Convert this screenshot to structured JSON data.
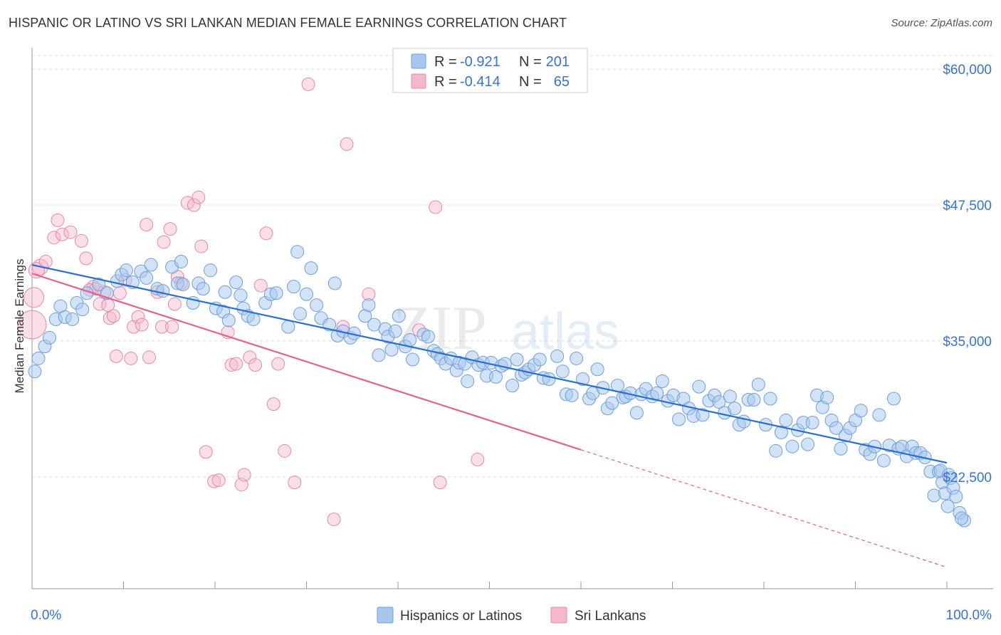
{
  "title": "HISPANIC OR LATINO VS SRI LANKAN MEDIAN FEMALE EARNINGS CORRELATION CHART",
  "source": "Source: ZipAtlas.com",
  "watermark": {
    "zip": "ZIP",
    "atlas": "atlas"
  },
  "legend_top": [
    {
      "r_label": "R =",
      "r_value": "-0.921",
      "n_label": "N =",
      "n_value": "201"
    },
    {
      "r_label": "R =",
      "r_value": "-0.414",
      "n_label": "N =",
      "n_value": "65"
    }
  ],
  "legend_bottom": [
    "Hispanics or Latinos",
    "Sri Lankans"
  ],
  "colors": {
    "blue_fill": "#a7c7ef",
    "blue_stroke": "#6e9fd8",
    "blue_line": "#2a6fcf",
    "pink_fill": "#f4b8cc",
    "pink_stroke": "#e48aa8",
    "pink_line": "#e0648c",
    "value_text": "#3b73c6",
    "grid": "#dddddd"
  },
  "chart_data": {
    "type": "scatter",
    "xlabel": "",
    "ylabel": "Median Female Earnings",
    "x_tick_labels": [
      "0.0%",
      "100.0%"
    ],
    "y_tick_labels": [
      "$22,500",
      "$35,000",
      "$47,500",
      "$60,000"
    ],
    "xlim": [
      0,
      100
    ],
    "ylim": [
      12000,
      62000
    ],
    "grid": true,
    "legend_placement": "top-center and bottom",
    "series": [
      {
        "name": "Hispanics or Latinos",
        "color": "#a7c7ef",
        "trend": {
          "x": [
            0,
            100
          ],
          "y": [
            42000,
            23800
          ]
        },
        "points": [
          [
            0.3,
            32200
          ],
          [
            0.7,
            33400
          ],
          [
            1.4,
            34500
          ],
          [
            1.9,
            35300
          ],
          [
            2.6,
            37000
          ],
          [
            3.1,
            38200
          ],
          [
            3.6,
            37200
          ],
          [
            4.4,
            37000
          ],
          [
            4.9,
            38500
          ],
          [
            5.5,
            37900
          ],
          [
            6.0,
            39400
          ],
          [
            7.3,
            40200
          ],
          [
            8.2,
            39400
          ],
          [
            9.3,
            40500
          ],
          [
            9.8,
            41100
          ],
          [
            10.3,
            41500
          ],
          [
            11.0,
            40400
          ],
          [
            11.9,
            41400
          ],
          [
            12.5,
            40800
          ],
          [
            13.0,
            42000
          ],
          [
            13.7,
            39800
          ],
          [
            14.3,
            39600
          ],
          [
            15.3,
            41800
          ],
          [
            15.9,
            40300
          ],
          [
            16.3,
            42300
          ],
          [
            16.5,
            40200
          ],
          [
            17.6,
            38500
          ],
          [
            18.2,
            40300
          ],
          [
            18.7,
            39800
          ],
          [
            19.5,
            41500
          ],
          [
            20.1,
            38000
          ],
          [
            20.9,
            37700
          ],
          [
            21.1,
            39500
          ],
          [
            21.5,
            36900
          ],
          [
            22.3,
            40400
          ],
          [
            22.8,
            39200
          ],
          [
            23.1,
            38000
          ],
          [
            23.6,
            37300
          ],
          [
            24.2,
            37000
          ],
          [
            25.5,
            38500
          ],
          [
            26.1,
            39300
          ],
          [
            26.7,
            39400
          ],
          [
            28.0,
            36300
          ],
          [
            28.6,
            40000
          ],
          [
            29.0,
            43200
          ],
          [
            29.3,
            37500
          ],
          [
            30.0,
            39300
          ],
          [
            30.5,
            41700
          ],
          [
            31.1,
            38300
          ],
          [
            31.6,
            37100
          ],
          [
            32.5,
            36500
          ],
          [
            33.1,
            40300
          ],
          [
            33.4,
            35500
          ],
          [
            34.0,
            35900
          ],
          [
            34.8,
            35300
          ],
          [
            35.2,
            35700
          ],
          [
            36.4,
            37300
          ],
          [
            36.8,
            38300
          ],
          [
            37.4,
            36500
          ],
          [
            37.9,
            33700
          ],
          [
            38.6,
            36100
          ],
          [
            38.9,
            35400
          ],
          [
            39.3,
            34200
          ],
          [
            39.7,
            35900
          ],
          [
            40.1,
            37300
          ],
          [
            40.8,
            34500
          ],
          [
            41.3,
            35100
          ],
          [
            41.6,
            33300
          ],
          [
            42.8,
            35600
          ],
          [
            43.3,
            35400
          ],
          [
            43.9,
            34100
          ],
          [
            44.3,
            33800
          ],
          [
            44.7,
            33400
          ],
          [
            45.2,
            32900
          ],
          [
            45.8,
            33400
          ],
          [
            46.4,
            32300
          ],
          [
            46.7,
            33000
          ],
          [
            47.3,
            32900
          ],
          [
            47.6,
            31300
          ],
          [
            48.1,
            33500
          ],
          [
            48.8,
            32800
          ],
          [
            49.3,
            33000
          ],
          [
            49.7,
            31800
          ],
          [
            50.2,
            33000
          ],
          [
            50.7,
            31700
          ],
          [
            51.3,
            32700
          ],
          [
            51.7,
            32900
          ],
          [
            52.5,
            30900
          ],
          [
            53.0,
            33300
          ],
          [
            53.5,
            31900
          ],
          [
            53.9,
            32100
          ],
          [
            54.3,
            32400
          ],
          [
            54.9,
            32800
          ],
          [
            55.5,
            33300
          ],
          [
            55.9,
            31600
          ],
          [
            56.5,
            31500
          ],
          [
            57.4,
            33600
          ],
          [
            58.0,
            32200
          ],
          [
            58.4,
            30100
          ],
          [
            59.0,
            30000
          ],
          [
            59.5,
            33400
          ],
          [
            60.2,
            31500
          ],
          [
            60.9,
            29700
          ],
          [
            61.3,
            30200
          ],
          [
            61.8,
            32400
          ],
          [
            62.4,
            30700
          ],
          [
            62.9,
            28800
          ],
          [
            63.4,
            29300
          ],
          [
            64.0,
            30900
          ],
          [
            64.6,
            29800
          ],
          [
            64.9,
            29900
          ],
          [
            65.4,
            30200
          ],
          [
            66.1,
            28400
          ],
          [
            66.6,
            30100
          ],
          [
            67.1,
            30600
          ],
          [
            67.8,
            29900
          ],
          [
            68.3,
            30200
          ],
          [
            68.9,
            31300
          ],
          [
            69.5,
            29500
          ],
          [
            70.1,
            30000
          ],
          [
            70.7,
            27800
          ],
          [
            71.2,
            29700
          ],
          [
            71.8,
            28800
          ],
          [
            72.3,
            28100
          ],
          [
            72.9,
            30800
          ],
          [
            73.3,
            28200
          ],
          [
            74.0,
            29500
          ],
          [
            74.6,
            30000
          ],
          [
            75.1,
            29400
          ],
          [
            75.7,
            28400
          ],
          [
            76.3,
            29900
          ],
          [
            76.8,
            28800
          ],
          [
            77.3,
            27300
          ],
          [
            77.8,
            27600
          ],
          [
            78.3,
            29600
          ],
          [
            78.9,
            29600
          ],
          [
            79.4,
            31000
          ],
          [
            80.2,
            27300
          ],
          [
            80.7,
            29700
          ],
          [
            81.3,
            24900
          ],
          [
            81.9,
            26600
          ],
          [
            82.4,
            27700
          ],
          [
            83.1,
            25300
          ],
          [
            83.7,
            26800
          ],
          [
            84.3,
            27500
          ],
          [
            84.8,
            25500
          ],
          [
            85.3,
            27500
          ],
          [
            85.8,
            30000
          ],
          [
            86.4,
            28900
          ],
          [
            86.9,
            29800
          ],
          [
            87.4,
            27700
          ],
          [
            87.9,
            27000
          ],
          [
            88.4,
            25100
          ],
          [
            88.9,
            26300
          ],
          [
            89.4,
            27000
          ],
          [
            90.0,
            27700
          ],
          [
            90.6,
            28600
          ],
          [
            91.1,
            25000
          ],
          [
            91.6,
            24600
          ],
          [
            92.1,
            25300
          ],
          [
            92.6,
            28200
          ],
          [
            93.1,
            24000
          ],
          [
            93.7,
            25400
          ],
          [
            94.2,
            29700
          ],
          [
            94.7,
            25100
          ],
          [
            95.1,
            25300
          ],
          [
            95.6,
            24400
          ],
          [
            96.2,
            25300
          ],
          [
            96.6,
            24700
          ],
          [
            97.1,
            24700
          ],
          [
            97.6,
            24300
          ],
          [
            98.2,
            23000
          ],
          [
            98.6,
            20800
          ],
          [
            99.1,
            23000
          ],
          [
            99.5,
            22000
          ],
          [
            99.8,
            21000
          ],
          [
            100.1,
            19800
          ],
          [
            100.4,
            22400
          ],
          [
            100.7,
            21500
          ],
          [
            101.0,
            20700
          ],
          [
            101.4,
            19200
          ],
          [
            101.9,
            18500
          ],
          [
            99.3,
            23100
          ],
          [
            100.2,
            22700
          ],
          [
            101.6,
            18700
          ]
        ]
      },
      {
        "name": "Sri Lankans",
        "color": "#f4b8cc",
        "trend": {
          "x": [
            0,
            60,
            100
          ],
          "y": [
            41200,
            25000,
            14200
          ]
        },
        "points": [
          [
            0.0,
            36500
          ],
          [
            0.2,
            39000
          ],
          [
            0.9,
            41800
          ],
          [
            0.5,
            41500
          ],
          [
            1.5,
            42300
          ],
          [
            2.4,
            44500
          ],
          [
            2.8,
            46100
          ],
          [
            3.3,
            44800
          ],
          [
            4.2,
            45000
          ],
          [
            5.4,
            44200
          ],
          [
            5.9,
            42600
          ],
          [
            6.7,
            40000
          ],
          [
            6.3,
            39700
          ],
          [
            7.0,
            39800
          ],
          [
            7.4,
            38400
          ],
          [
            7.9,
            39500
          ],
          [
            8.3,
            38300
          ],
          [
            8.5,
            37100
          ],
          [
            8.9,
            37300
          ],
          [
            9.2,
            33600
          ],
          [
            9.6,
            39400
          ],
          [
            10.2,
            40600
          ],
          [
            10.8,
            33400
          ],
          [
            11.1,
            36300
          ],
          [
            11.6,
            37200
          ],
          [
            12.0,
            36500
          ],
          [
            12.5,
            45700
          ],
          [
            12.8,
            33500
          ],
          [
            13.7,
            39500
          ],
          [
            14.2,
            36300
          ],
          [
            14.4,
            44100
          ],
          [
            15.1,
            45300
          ],
          [
            15.3,
            36300
          ],
          [
            15.6,
            38400
          ],
          [
            15.9,
            40900
          ],
          [
            16.3,
            40300
          ],
          [
            17.0,
            47700
          ],
          [
            17.7,
            47500
          ],
          [
            18.2,
            48200
          ],
          [
            18.5,
            43700
          ],
          [
            19.0,
            24800
          ],
          [
            19.9,
            22100
          ],
          [
            20.4,
            22200
          ],
          [
            21.4,
            35800
          ],
          [
            21.8,
            32800
          ],
          [
            22.3,
            32900
          ],
          [
            22.9,
            21800
          ],
          [
            23.2,
            22700
          ],
          [
            23.8,
            33500
          ],
          [
            24.4,
            32800
          ],
          [
            25.0,
            40100
          ],
          [
            25.6,
            44900
          ],
          [
            26.4,
            29200
          ],
          [
            26.9,
            32900
          ],
          [
            27.6,
            24900
          ],
          [
            28.7,
            22000
          ],
          [
            30.2,
            58600
          ],
          [
            33.0,
            18600
          ],
          [
            34.0,
            36300
          ],
          [
            34.4,
            53100
          ],
          [
            36.8,
            39300
          ],
          [
            42.3,
            36000
          ],
          [
            44.1,
            47300
          ],
          [
            44.6,
            22000
          ],
          [
            48.7,
            24100
          ]
        ]
      }
    ]
  }
}
